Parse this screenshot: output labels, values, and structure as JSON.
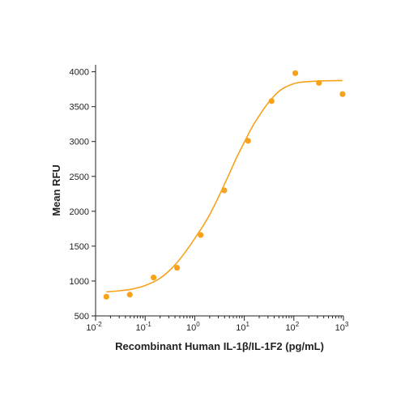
{
  "chart_data": {
    "type": "scatter",
    "title": "",
    "xlabel": "Recombinant Human IL-1β/IL-1F2 (pg/mL)",
    "ylabel": "Mean RFU",
    "x_scale": "log",
    "xlim": [
      0.01,
      1000
    ],
    "ylim": [
      500,
      4100
    ],
    "grid": false,
    "x_tick_labels": [
      {
        "value": 0.01,
        "base": "10",
        "exp": "-2"
      },
      {
        "value": 0.1,
        "base": "10",
        "exp": "-1"
      },
      {
        "value": 1,
        "base": "10",
        "exp": "0"
      },
      {
        "value": 10,
        "base": "10",
        "exp": "1"
      },
      {
        "value": 100,
        "base": "10",
        "exp": "2"
      },
      {
        "value": 1000,
        "base": "10",
        "exp": "3"
      }
    ],
    "y_ticks": [
      500,
      1000,
      1500,
      2000,
      2500,
      3000,
      3500,
      4000
    ],
    "color": "#F7A21B",
    "points": {
      "x": [
        0.0165,
        0.049,
        0.148,
        0.44,
        1.32,
        3.95,
        11.9,
        35.5,
        107,
        320,
        960
      ],
      "y": [
        775,
        805,
        1050,
        1190,
        1660,
        2300,
        3010,
        3580,
        3980,
        3840,
        3680
      ]
    },
    "fit_curve": {
      "x": [
        0.0165,
        0.03,
        0.05,
        0.1,
        0.2,
        0.4,
        0.7,
        1,
        1.5,
        2,
        3,
        4,
        5,
        7,
        10,
        15,
        20,
        30,
        50,
        100,
        200,
        400,
        960
      ],
      "y": [
        845,
        860,
        880,
        935,
        1040,
        1230,
        1450,
        1610,
        1800,
        1950,
        2200,
        2390,
        2540,
        2770,
        2990,
        3230,
        3370,
        3550,
        3720,
        3830,
        3860,
        3870,
        3875
      ]
    }
  }
}
